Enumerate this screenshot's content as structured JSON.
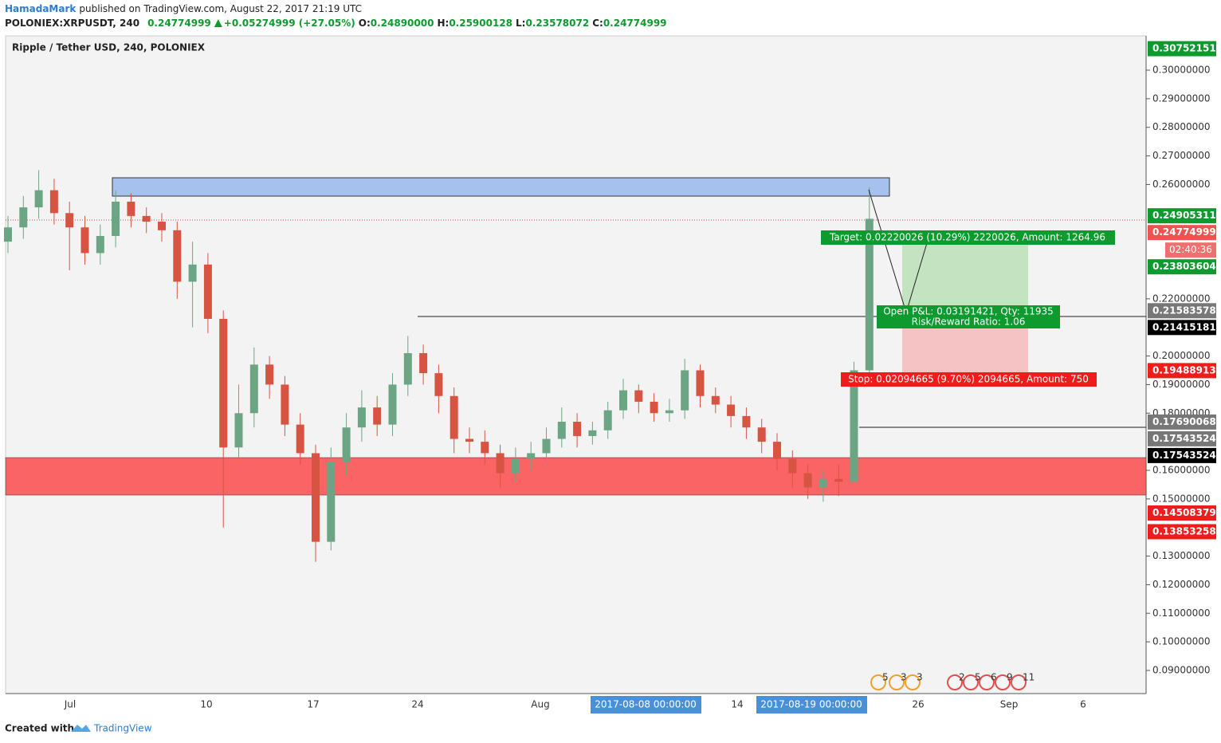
{
  "header": {
    "author": "HamadaMark",
    "published": "published on TradingView.com, August 22, 2017 21:19 UTC",
    "symbol": "POLONIEX:XRPUSDT, 240",
    "last": "0.24774999",
    "change": "+0.05274999 (+27.05%)",
    "quote": [
      {
        "label": "O:",
        "value": "0.24890000"
      },
      {
        "label": "H:",
        "value": "0.25900128"
      },
      {
        "label": "L:",
        "value": "0.23578072"
      },
      {
        "label": "C:",
        "value": "0.24774999"
      }
    ]
  },
  "chart": {
    "title": "Ripple / Tether USD, 240, POLONIEX",
    "ylim": [
      0.0819,
      0.312
    ],
    "yticks": [
      {
        "value": 0.3,
        "label": "0.30000000"
      },
      {
        "value": 0.29,
        "label": "0.29000000"
      },
      {
        "value": 0.28,
        "label": "0.28000000"
      },
      {
        "value": 0.27,
        "label": "0.27000000"
      },
      {
        "value": 0.26,
        "label": "0.26000000"
      },
      {
        "value": 0.22,
        "label": "0.22000000"
      },
      {
        "value": 0.2,
        "label": "0.20000000"
      },
      {
        "value": 0.19,
        "label": "0.19000000"
      },
      {
        "value": 0.18,
        "label": "0.18000000"
      },
      {
        "value": 0.16,
        "label": "0.16000000"
      },
      {
        "value": 0.15,
        "label": "0.15000000"
      },
      {
        "value": 0.13,
        "label": "0.13000000"
      },
      {
        "value": 0.12,
        "label": "0.12000000"
      },
      {
        "value": 0.11,
        "label": "0.11000000"
      },
      {
        "value": 0.1,
        "label": "0.10000000"
      },
      {
        "value": 0.09,
        "label": "0.09000000"
      }
    ],
    "candles": {
      "up_color": "#6ba583",
      "down_color": "#d75442",
      "open": [
        0.24,
        0.245,
        0.252,
        0.258,
        0.25,
        0.245,
        0.236,
        0.242,
        0.254,
        0.249,
        0.247,
        0.244,
        0.226,
        0.232,
        0.213,
        0.168,
        0.18,
        0.197,
        0.19,
        0.176,
        0.166,
        0.135,
        0.163,
        0.175,
        0.182,
        0.176,
        0.19,
        0.201,
        0.194,
        0.186,
        0.171,
        0.17,
        0.166,
        0.159,
        0.164,
        0.166,
        0.171,
        0.177,
        0.172,
        0.174,
        0.181,
        0.188,
        0.184,
        0.18,
        0.181,
        0.195,
        0.186,
        0.183,
        0.179,
        0.175,
        0.17,
        0.164,
        0.159,
        0.154,
        0.157,
        0.156,
        0.195
      ],
      "high": [
        0.249,
        0.256,
        0.265,
        0.262,
        0.254,
        0.249,
        0.246,
        0.258,
        0.257,
        0.252,
        0.25,
        0.247,
        0.24,
        0.236,
        0.216,
        0.19,
        0.203,
        0.2,
        0.193,
        0.18,
        0.169,
        0.168,
        0.18,
        0.188,
        0.186,
        0.194,
        0.207,
        0.204,
        0.197,
        0.189,
        0.175,
        0.174,
        0.169,
        0.168,
        0.17,
        0.175,
        0.182,
        0.18,
        0.177,
        0.184,
        0.192,
        0.19,
        0.187,
        0.185,
        0.199,
        0.197,
        0.189,
        0.186,
        0.182,
        0.178,
        0.173,
        0.167,
        0.162,
        0.16,
        0.162,
        0.198,
        0.259
      ],
      "low": [
        0.236,
        0.241,
        0.248,
        0.246,
        0.23,
        0.232,
        0.232,
        0.238,
        0.245,
        0.243,
        0.24,
        0.22,
        0.21,
        0.208,
        0.14,
        0.16,
        0.175,
        0.185,
        0.172,
        0.162,
        0.128,
        0.132,
        0.158,
        0.17,
        0.172,
        0.172,
        0.186,
        0.19,
        0.18,
        0.166,
        0.166,
        0.162,
        0.154,
        0.156,
        0.16,
        0.162,
        0.168,
        0.168,
        0.169,
        0.171,
        0.178,
        0.18,
        0.177,
        0.177,
        0.178,
        0.182,
        0.18,
        0.175,
        0.171,
        0.166,
        0.16,
        0.154,
        0.15,
        0.149,
        0.151,
        0.153,
        0.19
      ],
      "close": [
        0.245,
        0.252,
        0.258,
        0.25,
        0.245,
        0.236,
        0.242,
        0.254,
        0.249,
        0.247,
        0.244,
        0.226,
        0.232,
        0.213,
        0.168,
        0.18,
        0.197,
        0.19,
        0.176,
        0.166,
        0.135,
        0.163,
        0.175,
        0.182,
        0.176,
        0.19,
        0.201,
        0.194,
        0.186,
        0.171,
        0.17,
        0.166,
        0.159,
        0.164,
        0.166,
        0.171,
        0.177,
        0.172,
        0.174,
        0.181,
        0.188,
        0.184,
        0.18,
        0.181,
        0.195,
        0.186,
        0.183,
        0.179,
        0.175,
        0.17,
        0.164,
        0.159,
        0.154,
        0.157,
        0.156,
        0.195,
        0.248
      ]
    },
    "badges": [
      {
        "value": 0.30752151,
        "color": "#0e9a2e"
      },
      {
        "value": 0.24905311,
        "color": "#0e9a2e"
      },
      {
        "value": 0.24774999,
        "color": "#ef5350"
      },
      {
        "value": 0.23803604,
        "color": "#0e9a2e"
      },
      {
        "value": 0.21583578,
        "color": "#777777"
      },
      {
        "value": 0.21415181,
        "color": "#000000"
      },
      {
        "value": 0.19488913,
        "color": "#ef1c1c"
      },
      {
        "value": 0.17690068,
        "color": "#777777"
      },
      {
        "value": 0.17543524,
        "color": "#777777"
      },
      {
        "value": 0.17543524,
        "color": "#000000"
      },
      {
        "value": 0.14508379,
        "color": "#ef1c1c"
      },
      {
        "value": 0.13853258,
        "color": "#ef1c1c"
      }
    ],
    "countdown": "02:40:36",
    "xlabels": [
      "Jul",
      "10",
      "17",
      "24",
      "Aug",
      "14",
      "26",
      "Sep",
      "6"
    ],
    "crosshair": [
      "2017-08-08 00:00:00",
      "2017-08-19 00:00:00"
    ],
    "target": "Target: 0.02220026 (10.29%) 2220026, Amount: 1264.96",
    "pnl": "Open P&L: 0.03191421, Qty: 11935",
    "rr": "Risk/Reward Ratio: 1.06",
    "stop": "Stop: 0.02094665 (9.70%) 2094665, Amount: 750",
    "events": [
      "5",
      "3",
      "3",
      "2",
      "5",
      "6",
      "9",
      "11"
    ]
  },
  "footer": {
    "created": "Created with",
    "brand": "TradingView"
  }
}
